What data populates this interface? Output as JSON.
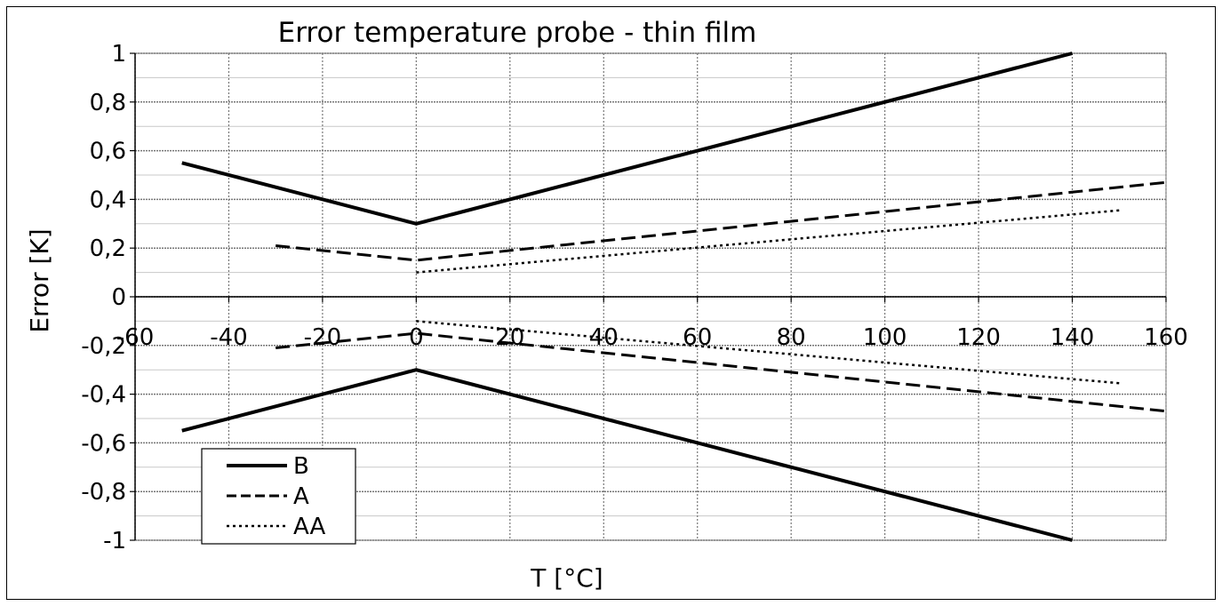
{
  "chart_data": {
    "type": "line",
    "title": "Error temperature probe - thin film",
    "xlabel": "T [°C]",
    "ylabel": "Error [K]",
    "xlim": [
      -60,
      160
    ],
    "ylim": [
      -1,
      1
    ],
    "x_ticks": [
      "-60",
      "-40",
      "-20",
      "0",
      "20",
      "40",
      "60",
      "80",
      "100",
      "120",
      "140",
      "160"
    ],
    "y_ticks": [
      "1",
      "0,8",
      "0,6",
      "0,4",
      "0,2",
      "0",
      "-0,2",
      "-0,4",
      "-0,6",
      "-0,8",
      "-1"
    ],
    "grid": true,
    "legend_position": "bottom-left",
    "series": [
      {
        "name": "B",
        "style": "solid",
        "segments": [
          {
            "x": [
              -50,
              0,
              140
            ],
            "y": [
              0.55,
              0.3,
              1.0
            ]
          },
          {
            "x": [
              -50,
              0,
              140
            ],
            "y": [
              -0.55,
              -0.3,
              -1.0
            ]
          }
        ]
      },
      {
        "name": "A",
        "style": "dashed",
        "segments": [
          {
            "x": [
              -30,
              0,
              160
            ],
            "y": [
              0.21,
              0.15,
              0.47
            ]
          },
          {
            "x": [
              -30,
              0,
              160
            ],
            "y": [
              -0.21,
              -0.15,
              -0.47
            ]
          }
        ]
      },
      {
        "name": "AA",
        "style": "dotted",
        "segments": [
          {
            "x": [
              0,
              150
            ],
            "y": [
              0.1,
              0.355
            ]
          },
          {
            "x": [
              0,
              150
            ],
            "y": [
              -0.1,
              -0.355
            ]
          }
        ]
      }
    ],
    "line_color": "#000000"
  }
}
